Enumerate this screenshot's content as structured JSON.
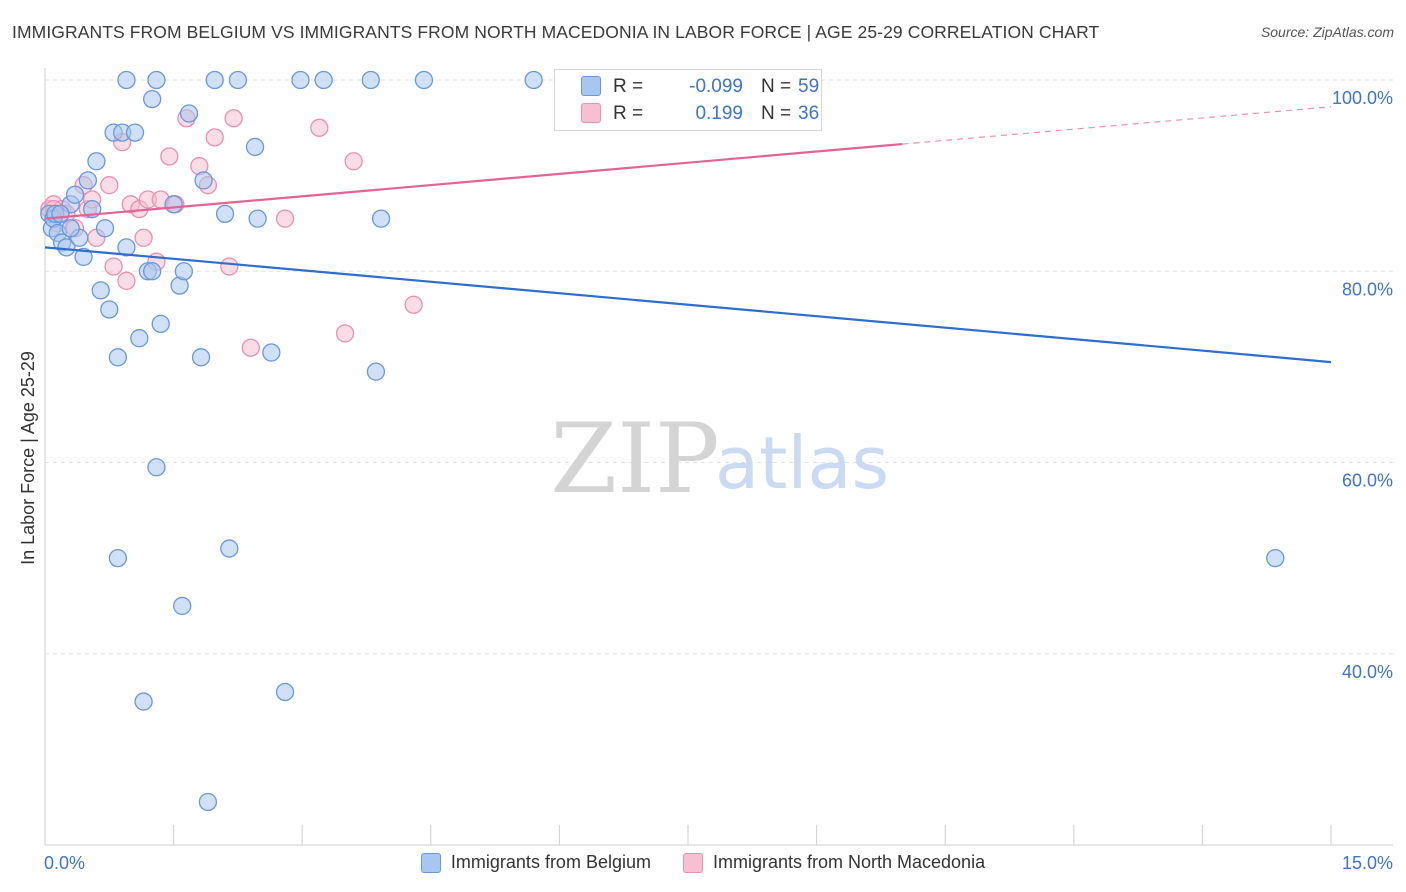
{
  "title": "IMMIGRANTS FROM BELGIUM VS IMMIGRANTS FROM NORTH MACEDONIA IN LABOR FORCE | AGE 25-29 CORRELATION CHART",
  "source": "Source: ZipAtlas.com",
  "watermark": {
    "zip": "ZIP",
    "atlas": "atlas"
  },
  "colors": {
    "blue_fill": "#a9c6ee",
    "blue_stroke": "#6b98da",
    "blue_line": "#2e6fce",
    "pink_fill": "#f6c0d2",
    "pink_stroke": "#e891b0",
    "pink_line": "#e26494",
    "axis_label": "#3d74c9",
    "grid": "#e2e2e2"
  },
  "stats": [
    {
      "r_label": "R =",
      "r_value": "-0.099",
      "n_label": "N =",
      "n_value": "59",
      "color": "blue"
    },
    {
      "r_label": "R =",
      "r_value": "0.199",
      "n_label": "N =",
      "n_value": "36",
      "color": "pink"
    }
  ],
  "chart_data": {
    "type": "scatter",
    "title": "IMMIGRANTS FROM BELGIUM VS IMMIGRANTS FROM NORTH MACEDONIA IN LABOR FORCE | AGE 25-29 CORRELATION CHART",
    "xlabel": "",
    "ylabel": "In Labor Force | Age 25-29",
    "xlim": [
      0,
      15
    ],
    "ylim": [
      20,
      102
    ],
    "x_tick_labels": [
      "0.0%",
      "15.0%"
    ],
    "y_ticks": [
      40,
      60,
      80,
      100
    ],
    "y_tick_labels": [
      "40.0%",
      "60.0%",
      "80.0%",
      "100.0%"
    ],
    "grid": true,
    "legend_position": "bottom",
    "series": [
      {
        "name": "Immigrants from Belgium",
        "color": "blue",
        "trend": {
          "x": [
            0,
            15
          ],
          "y": [
            82.5,
            70.5
          ],
          "style": "solid"
        },
        "points": [
          [
            0.05,
            86.0
          ],
          [
            0.08,
            84.5
          ],
          [
            0.1,
            85.5
          ],
          [
            0.12,
            86.0
          ],
          [
            0.15,
            84.0
          ],
          [
            0.2,
            83.0
          ],
          [
            0.25,
            82.5
          ],
          [
            0.3,
            87.0
          ],
          [
            0.35,
            88.0
          ],
          [
            0.4,
            83.5
          ],
          [
            0.45,
            81.5
          ],
          [
            0.5,
            89.5
          ],
          [
            0.55,
            86.5
          ],
          [
            0.6,
            91.5
          ],
          [
            0.65,
            78.0
          ],
          [
            0.7,
            84.5
          ],
          [
            0.75,
            76.0
          ],
          [
            0.8,
            94.5
          ],
          [
            0.85,
            71.0
          ],
          [
            0.9,
            94.5
          ],
          [
            0.95,
            82.5
          ],
          [
            0.95,
            100.0
          ],
          [
            1.05,
            94.5
          ],
          [
            1.1,
            73.0
          ],
          [
            1.2,
            80.0
          ],
          [
            1.25,
            98.0
          ],
          [
            1.3,
            100.0
          ],
          [
            1.35,
            74.5
          ],
          [
            1.5,
            87.0
          ],
          [
            1.57,
            78.5
          ],
          [
            1.62,
            80.0
          ],
          [
            1.68,
            96.5
          ],
          [
            1.82,
            71.0
          ],
          [
            1.85,
            89.5
          ],
          [
            1.98,
            100.0
          ],
          [
            2.1,
            86.0
          ],
          [
            2.25,
            100.0
          ],
          [
            2.45,
            93.0
          ],
          [
            2.48,
            85.5
          ],
          [
            2.64,
            71.5
          ],
          [
            2.98,
            100.0
          ],
          [
            3.25,
            100.0
          ],
          [
            3.8,
            100.0
          ],
          [
            3.86,
            69.5
          ],
          [
            3.92,
            85.5
          ],
          [
            4.42,
            100.0
          ],
          [
            5.7,
            100.0
          ],
          [
            6.05,
            100.0
          ],
          [
            1.3,
            59.5
          ],
          [
            0.85,
            50.0
          ],
          [
            2.15,
            51.0
          ],
          [
            1.6,
            45.0
          ],
          [
            0.3,
            84.5
          ],
          [
            2.8,
            36.0
          ],
          [
            1.15,
            35.0
          ],
          [
            1.9,
            24.5
          ],
          [
            14.35,
            50.0
          ],
          [
            1.25,
            80.0
          ],
          [
            0.18,
            86.0
          ]
        ]
      },
      {
        "name": "Immigrants from North Macedonia",
        "color": "pink",
        "trend": {
          "x": [
            0,
            10.0
          ],
          "y": [
            85.5,
            93.3
          ],
          "style": "solid",
          "dashed_to": [
            15,
            97.2
          ]
        },
        "points": [
          [
            0.05,
            86.5
          ],
          [
            0.1,
            87.0
          ],
          [
            0.15,
            85.0
          ],
          [
            0.2,
            86.5
          ],
          [
            0.25,
            86.0
          ],
          [
            0.35,
            84.5
          ],
          [
            0.45,
            89.0
          ],
          [
            0.5,
            86.5
          ],
          [
            0.55,
            87.5
          ],
          [
            0.6,
            83.5
          ],
          [
            0.75,
            89.0
          ],
          [
            0.8,
            80.5
          ],
          [
            0.9,
            93.5
          ],
          [
            0.95,
            79.0
          ],
          [
            1.0,
            87.0
          ],
          [
            1.1,
            86.5
          ],
          [
            1.15,
            83.5
          ],
          [
            1.2,
            87.5
          ],
          [
            1.3,
            81.0
          ],
          [
            1.35,
            87.5
          ],
          [
            1.45,
            92.0
          ],
          [
            1.52,
            87.0
          ],
          [
            1.65,
            96.0
          ],
          [
            1.8,
            91.0
          ],
          [
            1.9,
            89.0
          ],
          [
            1.98,
            94.0
          ],
          [
            2.15,
            80.5
          ],
          [
            2.2,
            96.0
          ],
          [
            2.4,
            72.0
          ],
          [
            2.8,
            85.5
          ],
          [
            3.2,
            95.0
          ],
          [
            3.5,
            73.5
          ],
          [
            3.6,
            91.5
          ],
          [
            4.3,
            76.5
          ],
          [
            8.05,
            100.0
          ],
          [
            0.1,
            86.5
          ]
        ]
      }
    ]
  },
  "legend_bottom": [
    {
      "label": "Immigrants from Belgium",
      "color": "blue"
    },
    {
      "label": "Immigrants from North Macedonia",
      "color": "pink"
    }
  ]
}
